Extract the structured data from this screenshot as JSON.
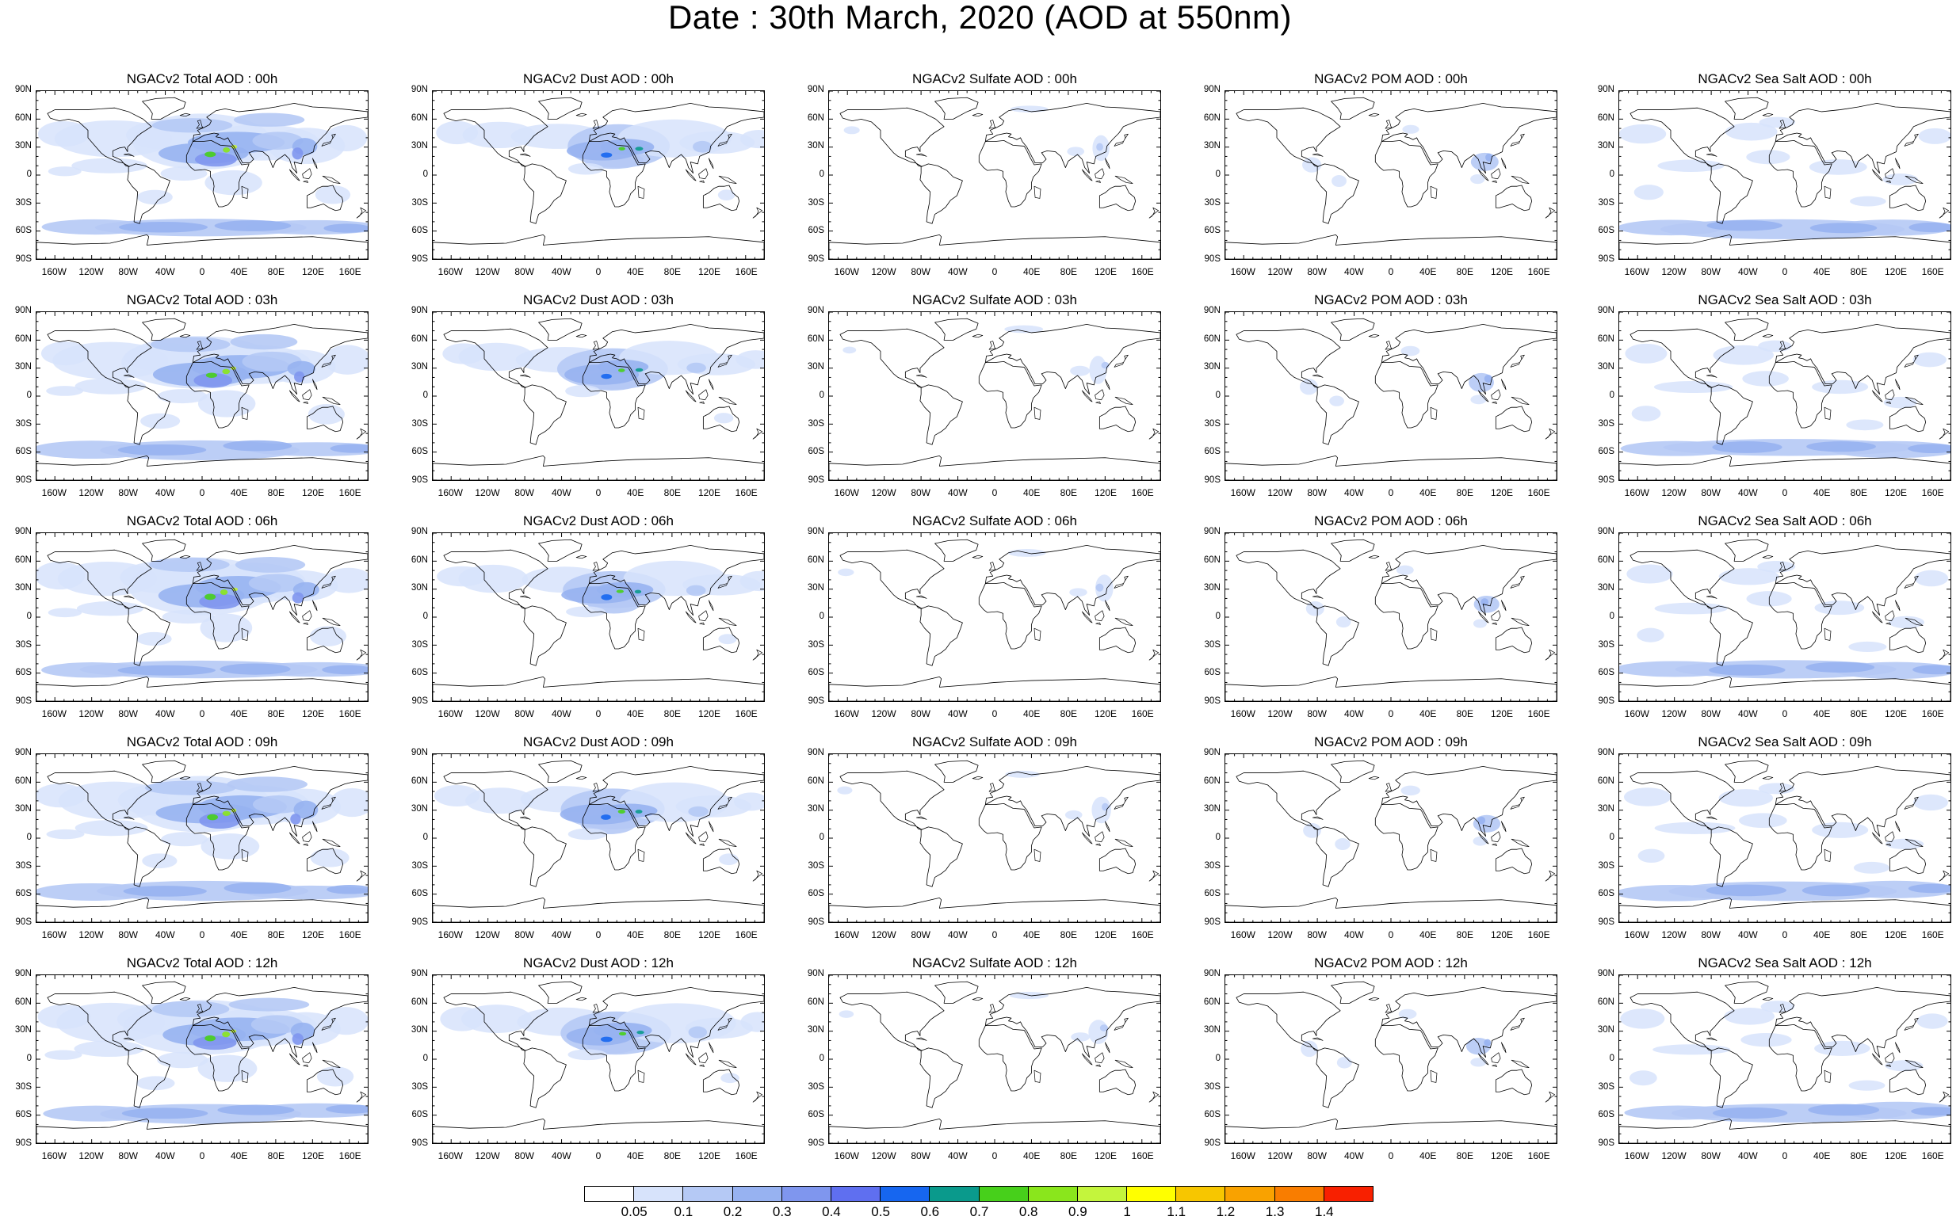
{
  "title": "Date : 30th March, 2020 (AOD at 550nm)",
  "columns": [
    "Total",
    "Dust",
    "Sulfate",
    "POM",
    "Sea Salt"
  ],
  "rows": [
    "00h",
    "03h",
    "06h",
    "09h",
    "12h"
  ],
  "panels": [
    [
      "NGACv2 Total AOD : 00h",
      "NGACv2 Dust AOD : 00h",
      "NGACv2 Sulfate AOD : 00h",
      "NGACv2 POM AOD : 00h",
      "NGACv2 Sea Salt AOD : 00h"
    ],
    [
      "NGACv2 Total AOD : 03h",
      "NGACv2 Dust AOD : 03h",
      "NGACv2 Sulfate AOD : 03h",
      "NGACv2 POM AOD : 03h",
      "NGACv2 Sea Salt AOD : 03h"
    ],
    [
      "NGACv2 Total AOD : 06h",
      "NGACv2 Dust AOD : 06h",
      "NGACv2 Sulfate AOD : 06h",
      "NGACv2 POM AOD : 06h",
      "NGACv2 Sea Salt AOD : 06h"
    ],
    [
      "NGACv2 Total AOD : 09h",
      "NGACv2 Dust AOD : 09h",
      "NGACv2 Sulfate AOD : 09h",
      "NGACv2 POM AOD : 09h",
      "NGACv2 Sea Salt  AOD : 09h"
    ],
    [
      "NGACv2 Total AOD : 12h",
      "NGACv2 Dust AOD : 12h",
      "NGACv2 Sulfate AOD : 12h",
      "NGACv2 POM  AOD : 12h",
      "NGACv2 Sea Salt AOD : 12h"
    ]
  ],
  "lat_ticks": [
    "90N",
    "60N",
    "30N",
    "0",
    "30S",
    "60S",
    "90S"
  ],
  "lon_ticks": [
    "160W",
    "120W",
    "80W",
    "40W",
    "0",
    "40E",
    "80E",
    "120E",
    "160E"
  ],
  "colorbar": {
    "labels": [
      "0.05",
      "0.1",
      "0.2",
      "0.3",
      "0.4",
      "0.5",
      "0.6",
      "0.7",
      "0.8",
      "0.9",
      "1",
      "1.1",
      "1.2",
      "1.3",
      "1.4"
    ],
    "colors": [
      "#ffffff",
      "#d7e3fb",
      "#b5c9f5",
      "#97b2f1",
      "#7f96ee",
      "#5f6ff0",
      "#1666f0",
      "#0a9a8c",
      "#47d01b",
      "#8ae61c",
      "#c4f53c",
      "#ffff00",
      "#f7c600",
      "#f9a200",
      "#f97d00",
      "#f82000"
    ]
  }
}
